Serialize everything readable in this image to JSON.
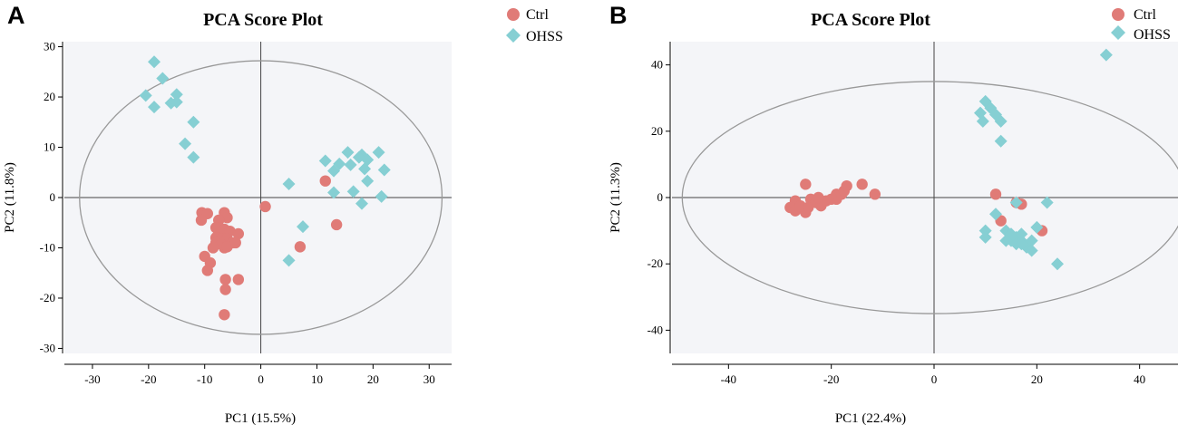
{
  "colors": {
    "ctrl": "#e07b77",
    "ohss": "#86cfd3",
    "plot_bg": "#f4f5f8",
    "ellipse": "#999999",
    "axis": "#000000"
  },
  "chart_data": [
    {
      "panel": "A",
      "type": "scatter",
      "title": "PCA Score Plot",
      "xlabel": "PC1 (15.5%)",
      "ylabel": "PC2 (11.8%)",
      "xlim": [
        -35,
        34
      ],
      "ylim": [
        -31,
        31
      ],
      "xticks": [
        -30,
        -20,
        -10,
        0,
        10,
        20,
        30
      ],
      "yticks": [
        -30,
        -20,
        -10,
        0,
        10,
        20,
        30
      ],
      "ellipse": {
        "cx": 0,
        "cy": 0,
        "rx": 32.3,
        "ry": 27.2
      },
      "legend": [
        "Ctrl",
        "OHSS"
      ],
      "series": [
        {
          "name": "Ctrl",
          "marker": "circle",
          "points": [
            [
              -10.5,
              -3
            ],
            [
              -9.5,
              -3.2
            ],
            [
              -10.6,
              -4.5
            ],
            [
              -6.5,
              -3
            ],
            [
              -6,
              -4
            ],
            [
              -7.5,
              -4.5
            ],
            [
              -8,
              -6
            ],
            [
              -7.5,
              -7
            ],
            [
              -6.5,
              -6.3
            ],
            [
              -5.5,
              -6.7
            ],
            [
              -4,
              -7.2
            ],
            [
              -8,
              -8
            ],
            [
              -7,
              -8.2
            ],
            [
              -6,
              -8.2
            ],
            [
              -8,
              -9
            ],
            [
              -7,
              -9.3
            ],
            [
              -5,
              -9
            ],
            [
              -8.5,
              -10
            ],
            [
              -6.5,
              -10
            ],
            [
              -6,
              -9.8
            ],
            [
              -4.5,
              -9
            ],
            [
              -10,
              -11.7
            ],
            [
              -9,
              -13
            ],
            [
              -9.5,
              -14.5
            ],
            [
              -6.3,
              -16.3
            ],
            [
              -4,
              -16.3
            ],
            [
              -6.3,
              -18.3
            ],
            [
              -6.5,
              -23.3
            ],
            [
              0.8,
              -1.8
            ],
            [
              11.5,
              3.3
            ],
            [
              7,
              -9.8
            ],
            [
              13.5,
              -5.4
            ]
          ]
        },
        {
          "name": "OHSS",
          "marker": "diamond",
          "points": [
            [
              -19,
              27
            ],
            [
              -17.5,
              23.7
            ],
            [
              -20.5,
              20.3
            ],
            [
              -15,
              20.5
            ],
            [
              -15,
              19
            ],
            [
              -16,
              18.8
            ],
            [
              -19,
              18
            ],
            [
              -12,
              15
            ],
            [
              -13.5,
              10.7
            ],
            [
              -12,
              8
            ],
            [
              5,
              2.7
            ],
            [
              11.5,
              7.3
            ],
            [
              13,
              5.3
            ],
            [
              14,
              6.7
            ],
            [
              15.5,
              9
            ],
            [
              16,
              6.5
            ],
            [
              18,
              8.5
            ],
            [
              17.5,
              8
            ],
            [
              19,
              7.5
            ],
            [
              18.5,
              5.7
            ],
            [
              21,
              9
            ],
            [
              22,
              5.5
            ],
            [
              13,
              1
            ],
            [
              16.5,
              1.2
            ],
            [
              19,
              3.3
            ],
            [
              18,
              -1.2
            ],
            [
              21.5,
              0.2
            ],
            [
              7.5,
              -5.8
            ],
            [
              5,
              -12.5
            ]
          ]
        }
      ]
    },
    {
      "panel": "B",
      "type": "scatter",
      "title": "PCA Score Plot",
      "xlabel": "PC1 (22.4%)",
      "ylabel": "PC2 (11.3%)",
      "xlim": [
        -51,
        48
      ],
      "ylim": [
        -47,
        47
      ],
      "xticks": [
        -40,
        -20,
        0,
        20,
        40
      ],
      "yticks": [
        -40,
        -20,
        0,
        20,
        40
      ],
      "ellipse": {
        "cx": 0,
        "cy": 0,
        "rx": 49,
        "ry": 35
      },
      "legend": [
        "Ctrl",
        "OHSS"
      ],
      "series": [
        {
          "name": "Ctrl",
          "marker": "circle",
          "points": [
            [
              -25,
              4
            ],
            [
              -27,
              -1
            ],
            [
              -28,
              -3
            ],
            [
              -27,
              -4
            ],
            [
              -25,
              -4.5
            ],
            [
              -24,
              -0.5
            ],
            [
              -23,
              -1.5
            ],
            [
              -22,
              -2.5
            ],
            [
              -21,
              -1
            ],
            [
              -20,
              -0.5
            ],
            [
              -19,
              -0.5
            ],
            [
              -19,
              1
            ],
            [
              -18,
              1
            ],
            [
              -17.5,
              2
            ],
            [
              -17,
              3.5
            ],
            [
              -14,
              4
            ],
            [
              -11.5,
              1
            ],
            [
              -26,
              -2.5
            ],
            [
              -24.5,
              -3
            ],
            [
              -22.5,
              0
            ],
            [
              12,
              1
            ],
            [
              16,
              -1.5
            ],
            [
              17,
              -2
            ],
            [
              13,
              -7
            ],
            [
              21,
              -10
            ]
          ]
        },
        {
          "name": "OHSS",
          "marker": "diamond",
          "points": [
            [
              33.5,
              43
            ],
            [
              9,
              25.5
            ],
            [
              10,
              29
            ],
            [
              11,
              27
            ],
            [
              12,
              25
            ],
            [
              13,
              23
            ],
            [
              9.5,
              23
            ],
            [
              13,
              17
            ],
            [
              12,
              -5
            ],
            [
              10,
              -10
            ],
            [
              10,
              -12
            ],
            [
              14,
              -10
            ],
            [
              15,
              -11
            ],
            [
              16,
              -12
            ],
            [
              17,
              -13
            ],
            [
              15,
              -13
            ],
            [
              16,
              -14
            ],
            [
              18,
              -15
            ],
            [
              17,
              -14
            ],
            [
              19,
              -13
            ],
            [
              19,
              -16
            ],
            [
              20,
              -9
            ],
            [
              14,
              -13
            ],
            [
              22,
              -1.5
            ],
            [
              16,
              -1.5
            ],
            [
              24,
              -20
            ],
            [
              17,
              -11
            ]
          ]
        }
      ]
    }
  ]
}
